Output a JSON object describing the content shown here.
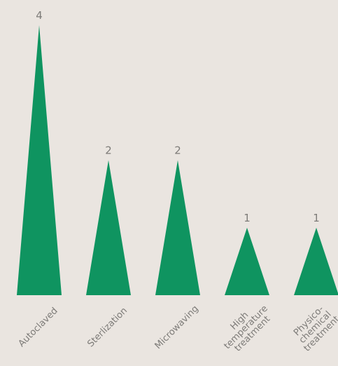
{
  "chart_data": {
    "type": "bar",
    "bar_shape": "triangle",
    "categories": [
      [
        "Autoclaved"
      ],
      [
        "Sterlization"
      ],
      [
        "Microwaving"
      ],
      [
        "High",
        "temperature",
        "treatment"
      ],
      [
        "Physico-",
        "chemical",
        "treatment"
      ]
    ],
    "values": [
      4,
      2,
      2,
      1,
      1
    ],
    "value_labels": [
      "4",
      "2",
      "2",
      "1",
      "1"
    ],
    "title": "",
    "xlabel": "",
    "ylabel": "",
    "ylim": [
      0,
      4
    ],
    "grid": false,
    "legend": "none",
    "colors": {
      "bar": "#0f9460",
      "text": "#7d7b78",
      "background": "#eae5e0"
    }
  }
}
